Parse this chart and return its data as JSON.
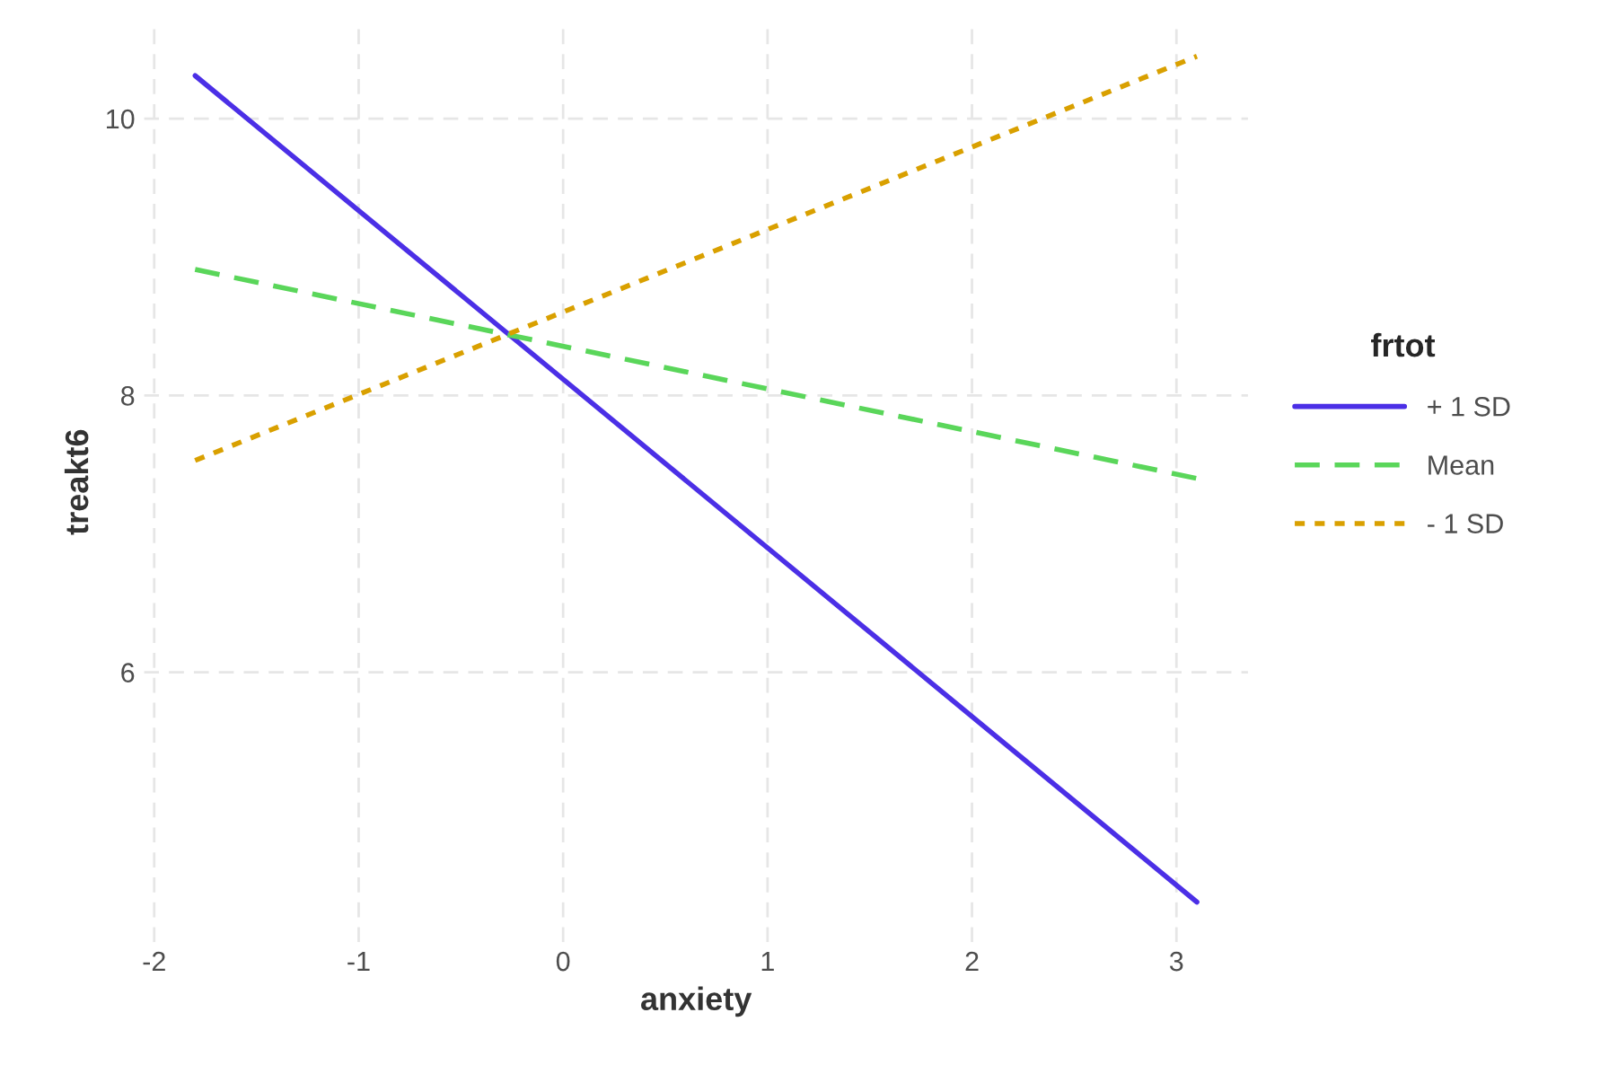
{
  "chart_data": {
    "type": "line",
    "xlabel": "anxiety",
    "ylabel": "treakt6",
    "legend_title": "frtot",
    "x": [
      -1.8,
      3.1
    ],
    "series": [
      {
        "name": "+ 1 SD",
        "color": "#4b2fe6",
        "values": [
          10.31,
          4.34
        ],
        "line_style": "solid"
      },
      {
        "name": "Mean",
        "color": "#5ad65a",
        "values": [
          8.91,
          7.4
        ],
        "line_style": "dashed"
      },
      {
        "name": "- 1 SD",
        "color": "#d9a000",
        "values": [
          7.53,
          10.45
        ],
        "line_style": "dotted"
      }
    ],
    "xlim": [
      -2.05,
      3.35
    ],
    "ylim": [
      4.05,
      10.7
    ],
    "xticks": [
      -2,
      -1,
      0,
      1,
      2,
      3
    ],
    "yticks": [
      6,
      8,
      10
    ],
    "grid": true,
    "legend": "right"
  }
}
